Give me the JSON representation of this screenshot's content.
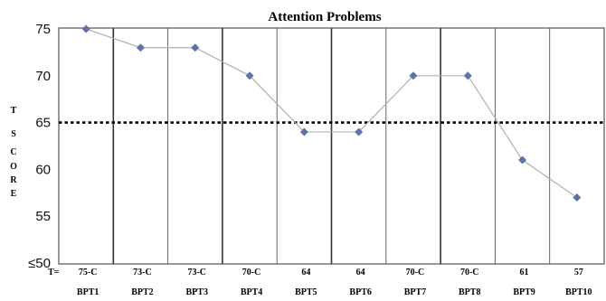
{
  "chart_data": {
    "type": "line",
    "title": "Attention Problems",
    "ylabel": "T SCORE",
    "ylim": [
      50,
      75
    ],
    "yticks": [
      "75",
      "70",
      "65",
      "60",
      "55",
      "≤50"
    ],
    "tscore_prefix": "T=",
    "reference_line": {
      "y": 65,
      "style": "dotted"
    },
    "categories": [
      "BPT1",
      "BPT2",
      "BPT3",
      "BPT4",
      "BPT5",
      "BPT6",
      "BPT7",
      "BPT8",
      "BPT9",
      "BPT10"
    ],
    "tscore_labels": [
      "75-C",
      "73-C",
      "73-C",
      "70-C",
      "64",
      "64",
      "70-C",
      "70-C",
      "61",
      "57"
    ],
    "series": [
      {
        "values": [
          75,
          73,
          73,
          70,
          64,
          64,
          70,
          70,
          61,
          57
        ]
      }
    ],
    "group_dividers_after": [
      1,
      3,
      5,
      7
    ],
    "colors": {
      "line": "#b0b0b0",
      "marker": "#5b73a8",
      "grid": "#555555",
      "reference": "#000000"
    }
  }
}
